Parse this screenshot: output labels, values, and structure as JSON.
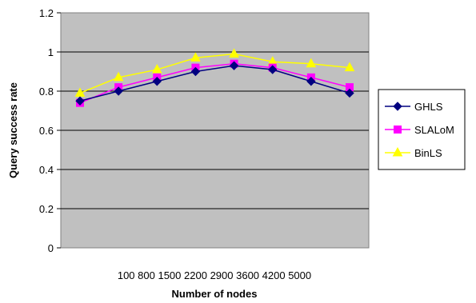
{
  "chart_data": {
    "type": "line",
    "categories": [
      "100",
      "800",
      "1500",
      "2200",
      "2900",
      "3600",
      "4200",
      "5000"
    ],
    "series": [
      {
        "name": "GHLS",
        "values": [
          0.75,
          0.8,
          0.85,
          0.9,
          0.93,
          0.91,
          0.85,
          0.79
        ],
        "color": "#000080",
        "marker": "diamond"
      },
      {
        "name": "SLALoM",
        "values": [
          0.74,
          0.82,
          0.87,
          0.92,
          0.94,
          0.92,
          0.87,
          0.82
        ],
        "color": "#ff00ff",
        "marker": "square"
      },
      {
        "name": "BinLS",
        "values": [
          0.79,
          0.87,
          0.91,
          0.97,
          0.99,
          0.95,
          0.94,
          0.92
        ],
        "color": "#ffff00",
        "marker": "triangle"
      }
    ],
    "xlabel": "Number of nodes",
    "ylabel": "Query success rate",
    "ylim": [
      0,
      1.2
    ],
    "yticks": [
      "0",
      "0.2",
      "0.4",
      "0.6",
      "0.8",
      "1",
      "1.2"
    ],
    "grid": true,
    "plot_background": "#c0c0c0",
    "legend_position": "right"
  }
}
